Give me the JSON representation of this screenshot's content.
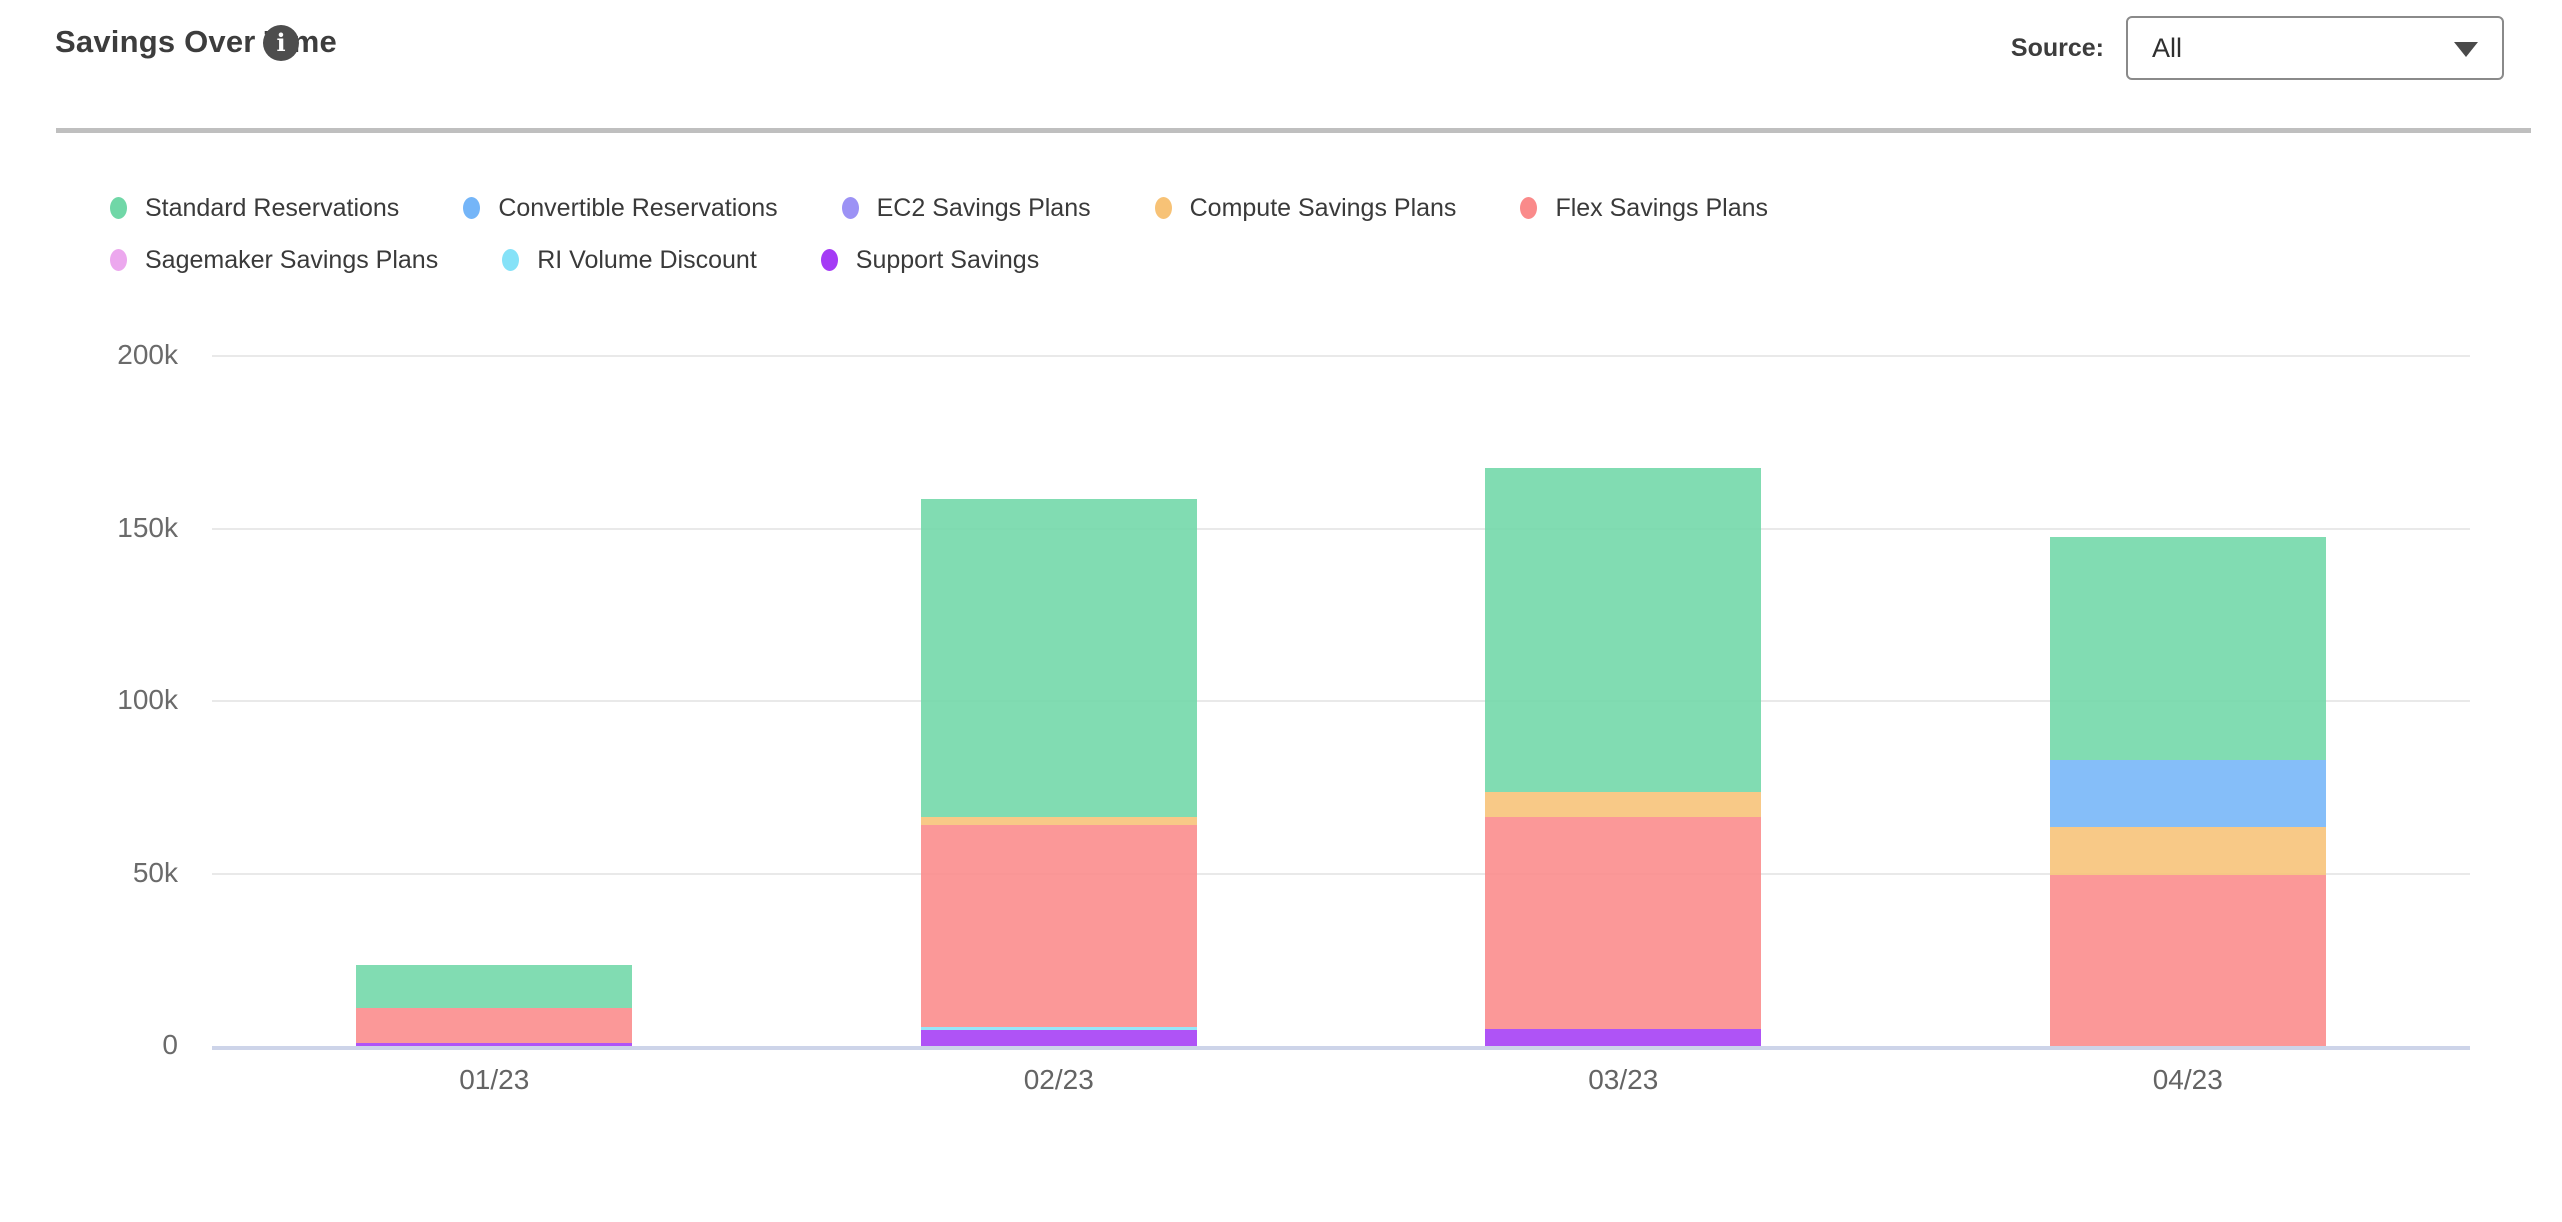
{
  "header": {
    "title": "Savings Over Time",
    "info_icon_glyph": "i",
    "source_label": "Source:",
    "source_value": "All"
  },
  "legend": {
    "rows": [
      [
        "Standard Reservations",
        "Convertible Reservations",
        "EC2 Savings Plans",
        "Compute Savings Plans",
        "Flex Savings Plans"
      ],
      [
        "Sagemaker Savings Plans",
        "RI Volume Discount",
        "Support Savings"
      ]
    ]
  },
  "chart_data": {
    "type": "bar",
    "stacked": true,
    "title": "Savings Over Time",
    "categories": [
      "01/23",
      "02/23",
      "03/23",
      "04/23"
    ],
    "y_ticks": [
      "0",
      "50k",
      "100k",
      "150k",
      "200k"
    ],
    "ylim_k": [
      0,
      200
    ],
    "grid": true,
    "legend_position": "top",
    "values_unit": "k",
    "series": [
      {
        "name": "Standard Reservations",
        "color": "#70d7a7",
        "values_k": [
          12.5,
          92,
          94,
          64.5
        ]
      },
      {
        "name": "Convertible Reservations",
        "color": "#74b5f8",
        "values_k": [
          0,
          0,
          0,
          19.5
        ]
      },
      {
        "name": "EC2 Savings Plans",
        "color": "#9c92f5",
        "values_k": [
          0,
          0,
          0,
          0
        ]
      },
      {
        "name": "Compute Savings Plans",
        "color": "#f7c276",
        "values_k": [
          0,
          2.5,
          7,
          14
        ]
      },
      {
        "name": "Flex Savings Plans",
        "color": "#fa8a8a",
        "values_k": [
          10,
          58.5,
          61.5,
          49.5
        ]
      },
      {
        "name": "Sagemaker Savings Plans",
        "color": "#eca8ee",
        "values_k": [
          0,
          0,
          0,
          0
        ]
      },
      {
        "name": "RI Volume Discount",
        "color": "#85e2f8",
        "values_k": [
          0,
          1,
          0,
          0
        ]
      },
      {
        "name": "Support Savings",
        "color": "#a43bf5",
        "values_k": [
          1,
          4.5,
          5,
          0
        ]
      }
    ],
    "stack_order_bottom_to_top": [
      "Support Savings",
      "RI Volume Discount",
      "Sagemaker Savings Plans",
      "Flex Savings Plans",
      "Compute Savings Plans",
      "EC2 Savings Plans",
      "Convertible Reservations",
      "Standard Reservations"
    ],
    "totals_k": [
      23.5,
      158.5,
      167.5,
      147.5
    ]
  }
}
